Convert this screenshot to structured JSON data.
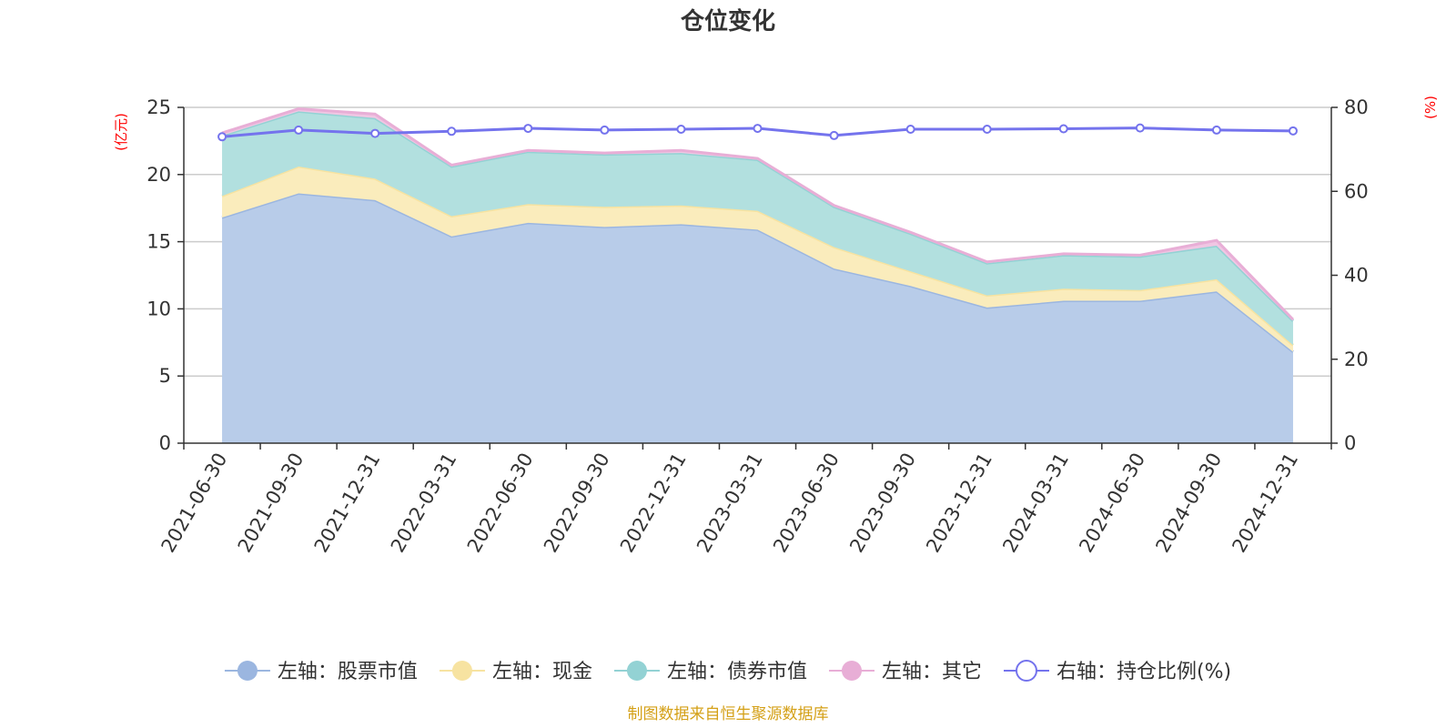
{
  "chart_data": {
    "type": "area",
    "title": "仓位变化",
    "left_axis_unit": "(亿元)",
    "right_axis_unit": "(%)",
    "categories": [
      "2021-06-30",
      "2021-09-30",
      "2021-12-31",
      "2022-03-31",
      "2022-06-30",
      "2022-09-30",
      "2022-12-31",
      "2023-03-31",
      "2023-06-30",
      "2023-09-30",
      "2023-12-31",
      "2024-03-31",
      "2024-06-30",
      "2024-09-30",
      "2024-12-31"
    ],
    "left_axis": {
      "min": 0,
      "max": 25,
      "ticks": [
        0,
        5,
        10,
        15,
        20,
        25
      ]
    },
    "right_axis": {
      "min": 0,
      "max": 80,
      "ticks": [
        0,
        20,
        40,
        60,
        80
      ]
    },
    "grid": true,
    "legend_position": "bottom",
    "stacked_series": [
      {
        "name": "左轴：股票市值",
        "color": "#9bb6e0",
        "fill": "#b8cce9",
        "values": [
          16.8,
          18.6,
          18.1,
          15.4,
          16.4,
          16.1,
          16.3,
          15.9,
          13.0,
          11.7,
          10.1,
          10.6,
          10.6,
          11.3,
          6.8
        ]
      },
      {
        "name": "左轴：现金",
        "color": "#f7e3a1",
        "fill": "#faecbc",
        "values": [
          1.6,
          2.0,
          1.6,
          1.5,
          1.4,
          1.5,
          1.4,
          1.4,
          1.6,
          1.1,
          0.9,
          0.9,
          0.8,
          0.9,
          0.5
        ]
      },
      {
        "name": "左轴：债券市值",
        "color": "#93d2d4",
        "fill": "#b2e0df",
        "values": [
          4.5,
          4.1,
          4.5,
          3.7,
          3.9,
          3.9,
          3.9,
          3.8,
          3.0,
          2.8,
          2.4,
          2.5,
          2.5,
          2.5,
          1.8
        ]
      },
      {
        "name": "左轴：其它",
        "color": "#e8aed6",
        "fill": "#f0c6e3",
        "values": [
          0.2,
          0.2,
          0.3,
          0.1,
          0.1,
          0.1,
          0.2,
          0.1,
          0.1,
          0.1,
          0.1,
          0.1,
          0.1,
          0.4,
          0.1
        ]
      }
    ],
    "line_series": {
      "name": "右轴：持仓比例(%)",
      "color": "#7473ed",
      "axis": "right",
      "values": [
        73.0,
        74.6,
        73.8,
        74.3,
        75.0,
        74.6,
        74.8,
        75.0,
        73.3,
        74.8,
        74.8,
        74.9,
        75.1,
        74.6,
        74.4
      ]
    },
    "footer": "制图数据来自恒生聚源数据库"
  }
}
